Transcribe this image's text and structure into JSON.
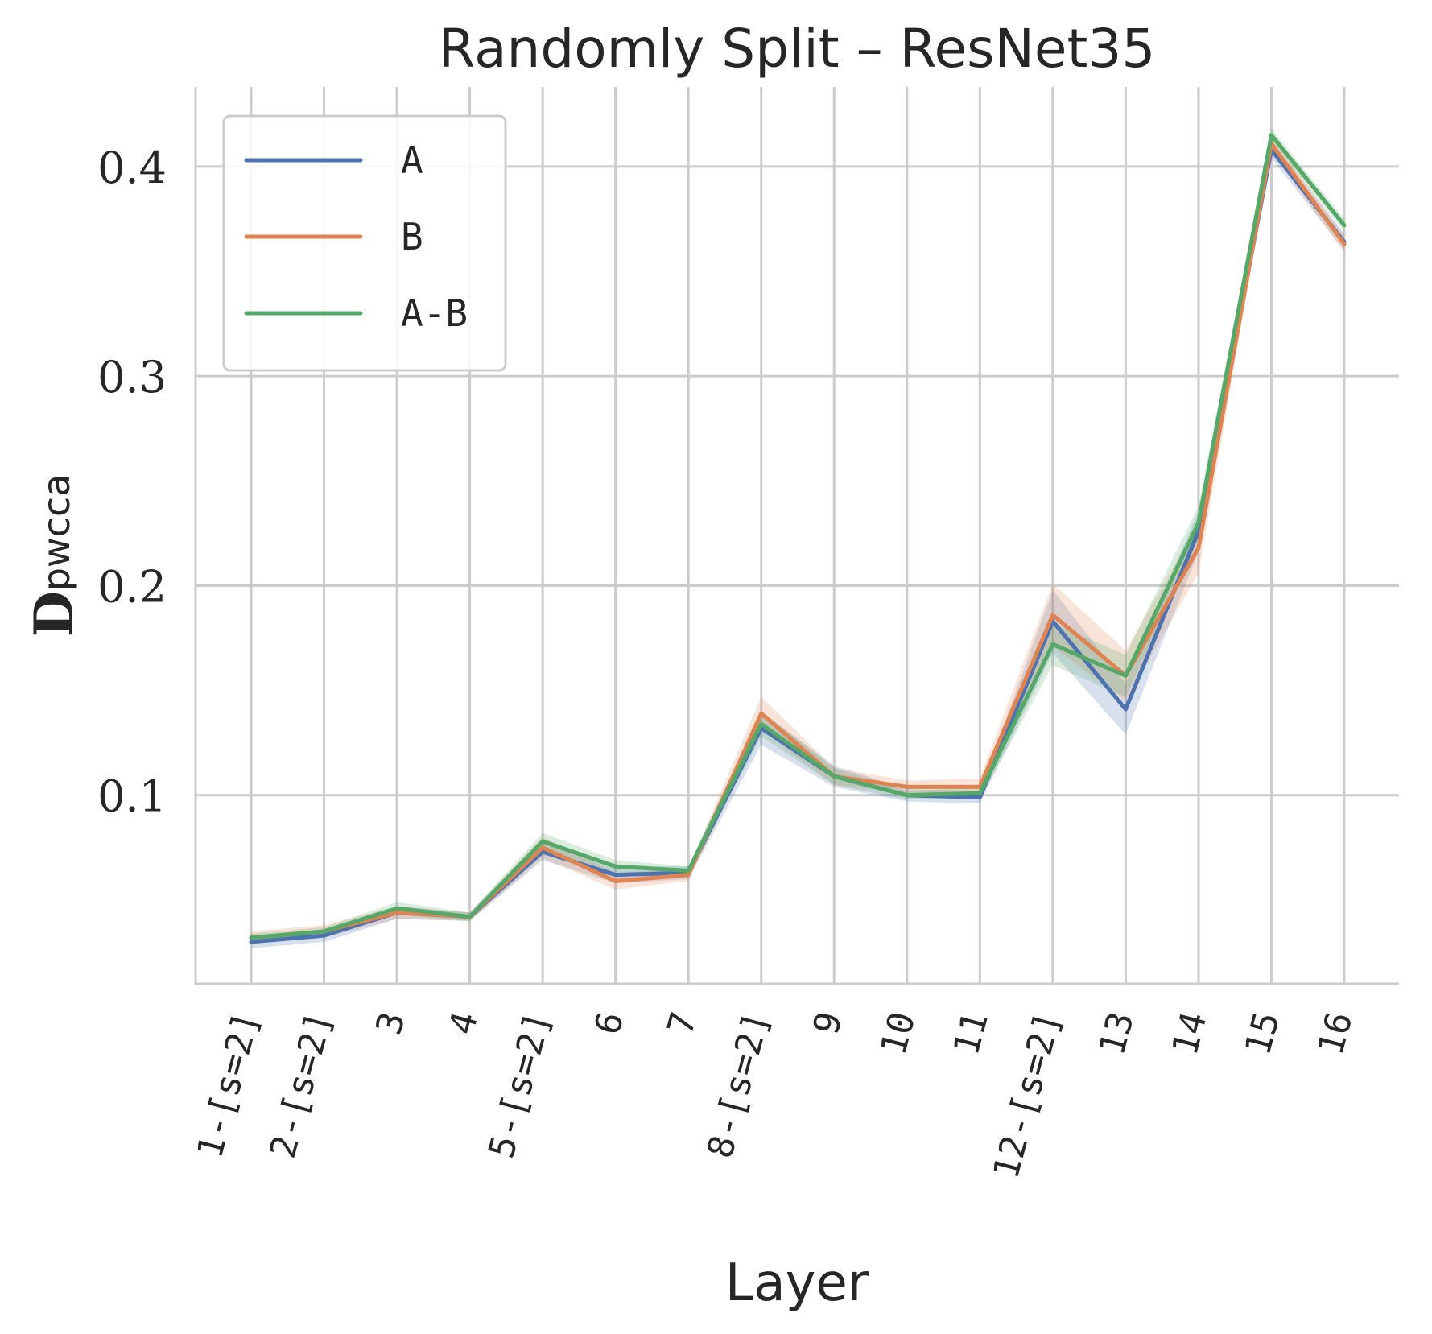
{
  "chart_data": {
    "type": "line",
    "title": "Randomly Split – ResNet35",
    "xlabel": "Layer",
    "ylabel": {
      "main": "D",
      "sub": "pwcca"
    },
    "categories": [
      "1-[s=2]",
      "2-[s=2]",
      "3",
      "4",
      "5-[s=2]",
      "6",
      "7",
      "8-[s=2]",
      "9",
      "10",
      "11",
      "12-[s=2]",
      "13",
      "14",
      "15",
      "16"
    ],
    "ylim": [
      0.01,
      0.438
    ],
    "yticks": [
      0.1,
      0.2,
      0.3,
      0.4
    ],
    "ytick_labels": [
      "0.1",
      "0.2",
      "0.3",
      "0.4"
    ],
    "grid": true,
    "legend_position": "top-left",
    "series": [
      {
        "name": "A",
        "color": "#4c72b0",
        "values": [
          0.03,
          0.033,
          0.044,
          0.042,
          0.073,
          0.062,
          0.063,
          0.132,
          0.109,
          0.1,
          0.099,
          0.183,
          0.141,
          0.226,
          0.408,
          0.364
        ],
        "band": [
          0.003,
          0.003,
          0.003,
          0.002,
          0.004,
          0.004,
          0.003,
          0.008,
          0.005,
          0.003,
          0.003,
          0.015,
          0.012,
          0.01,
          0.004,
          0.004
        ]
      },
      {
        "name": "B",
        "color": "#dd8452",
        "values": [
          0.032,
          0.035,
          0.044,
          0.042,
          0.075,
          0.059,
          0.062,
          0.139,
          0.109,
          0.104,
          0.104,
          0.186,
          0.157,
          0.218,
          0.411,
          0.363
        ],
        "band": [
          0.003,
          0.003,
          0.003,
          0.002,
          0.005,
          0.004,
          0.003,
          0.008,
          0.004,
          0.003,
          0.004,
          0.015,
          0.012,
          0.012,
          0.004,
          0.004
        ]
      },
      {
        "name": "A-B",
        "color": "#55a868",
        "values": [
          0.032,
          0.035,
          0.046,
          0.042,
          0.078,
          0.066,
          0.064,
          0.134,
          0.109,
          0.1,
          0.101,
          0.172,
          0.157,
          0.23,
          0.415,
          0.372
        ],
        "band": [
          0.002,
          0.002,
          0.003,
          0.002,
          0.004,
          0.003,
          0.002,
          0.006,
          0.004,
          0.002,
          0.003,
          0.01,
          0.01,
          0.008,
          0.003,
          0.003
        ]
      }
    ]
  }
}
